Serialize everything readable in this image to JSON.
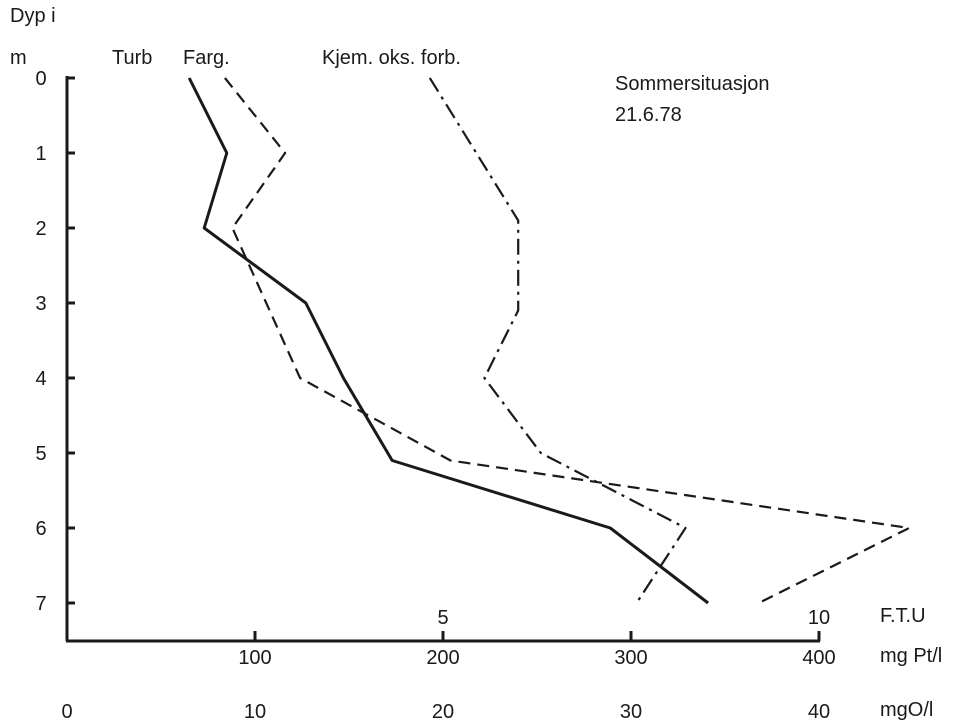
{
  "chart_data": {
    "type": "line",
    "title": "",
    "annotation_lines": [
      "Sommersituasjon",
      "21.6.78"
    ],
    "ylabel_lines": [
      "Dyp i",
      "m"
    ],
    "y_axis": {
      "ticks": [
        0,
        1,
        2,
        3,
        4,
        5,
        6,
        7
      ],
      "ylim": [
        0,
        7
      ],
      "inverted": true
    },
    "x_axes": [
      {
        "unit": "F.T.U",
        "ticks": [
          "5",
          "10"
        ],
        "tick_values": [
          5,
          10
        ],
        "xlim": [
          0,
          10
        ]
      },
      {
        "unit": "mg Pt/l",
        "ticks": [
          "100",
          "200",
          "300",
          "400"
        ],
        "tick_values": [
          100,
          200,
          300,
          400
        ],
        "xlim": [
          0,
          400
        ]
      },
      {
        "unit": "mgO/l",
        "ticks": [
          "0",
          "10",
          "20",
          "30",
          "40"
        ],
        "tick_values": [
          0,
          10,
          20,
          30,
          40
        ],
        "xlim": [
          0,
          40
        ]
      }
    ],
    "series": [
      {
        "name": "Turb",
        "axis": 0,
        "style": "dashed",
        "points": [
          [
            2.1,
            0
          ],
          [
            2.9,
            1
          ],
          [
            2.2,
            2
          ],
          [
            3.1,
            4
          ],
          [
            5.1,
            5.1
          ],
          [
            11.2,
            6
          ],
          [
            9.2,
            7
          ]
        ]
      },
      {
        "name": "Farg.",
        "axis": 1,
        "style": "solid",
        "points": [
          [
            65,
            0
          ],
          [
            85,
            1
          ],
          [
            73,
            2
          ],
          [
            127,
            3
          ],
          [
            147,
            4
          ],
          [
            173,
            5.1
          ],
          [
            289,
            6
          ],
          [
            341,
            7
          ]
        ]
      },
      {
        "name": "Kjem. oks. forb.",
        "axis": 2,
        "style": "dash-dot",
        "points": [
          [
            19.3,
            0
          ],
          [
            24,
            1.9
          ],
          [
            24,
            3.1
          ],
          [
            22.2,
            4
          ],
          [
            25.2,
            5
          ],
          [
            32.9,
            6
          ],
          [
            30.3,
            7
          ]
        ]
      }
    ],
    "grid": false,
    "legend": "inline labels above curves"
  }
}
